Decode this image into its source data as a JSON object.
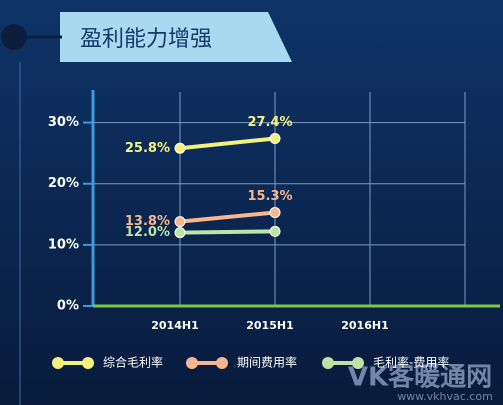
{
  "chart_data": {
    "type": "line",
    "title": "盈利能力增强",
    "categories": [
      "2014H1",
      "2015H1",
      "2016H1"
    ],
    "series": [
      {
        "name": "综合毛利率",
        "color": "#f3f27c",
        "values": [
          25.8,
          27.4,
          null
        ],
        "value_labels": [
          "25.8%",
          "27.4%",
          null
        ]
      },
      {
        "name": "期间费用率",
        "color": "#f6b68e",
        "values": [
          13.8,
          15.3,
          null
        ],
        "value_labels": [
          "13.8%",
          "15.3%",
          null
        ]
      },
      {
        "name": "毛利率-费用率",
        "color": "#bde3a5",
        "values": [
          12.0,
          12.2,
          null
        ],
        "value_labels": [
          "12.0%",
          null,
          null
        ]
      }
    ],
    "ylim": [
      0,
      35
    ],
    "yticks": [
      {
        "value": 0,
        "label": "0%"
      },
      {
        "value": 10,
        "label": "10%"
      },
      {
        "value": 20,
        "label": "20%"
      },
      {
        "value": 30,
        "label": "30%"
      }
    ],
    "grid": true,
    "watermark": "VK客暖通网",
    "watermark_url": "www.vkhvac.com"
  }
}
